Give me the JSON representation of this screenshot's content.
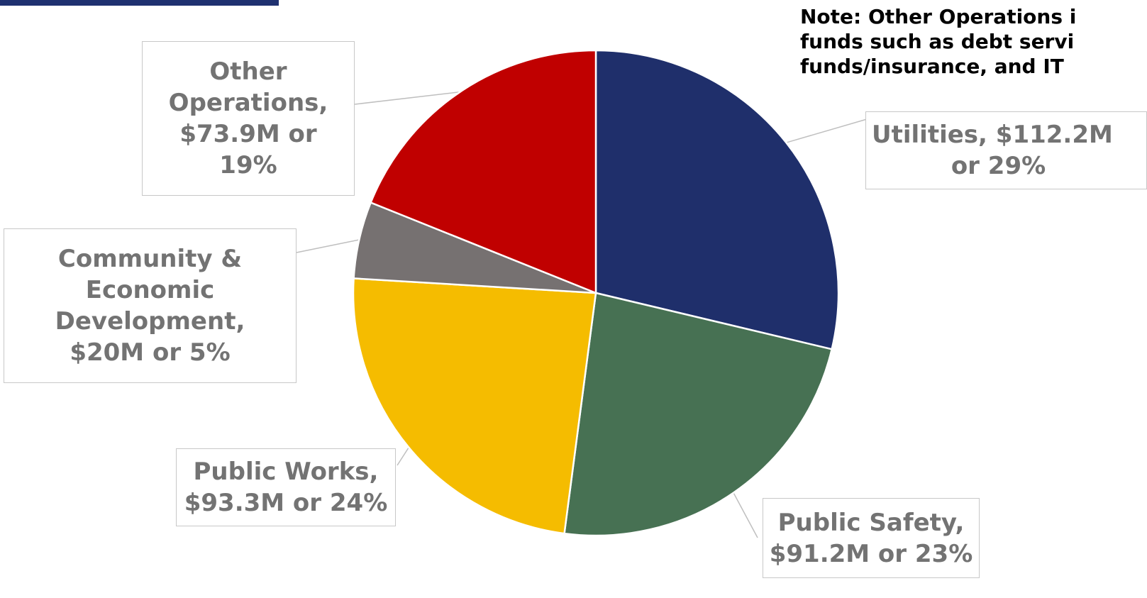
{
  "note": {
    "lines": [
      "Note: Other Operations i",
      "funds such as debt servi",
      "funds/insurance, and IT"
    ]
  },
  "colors": {
    "header_bar": "#1F3170",
    "utilities": "#1F2F6B",
    "public_safety": "#477153",
    "public_works": "#F5BC00",
    "community": "#767171",
    "other_operations": "#C00000"
  },
  "chart_data": {
    "type": "pie",
    "title": "",
    "slices": [
      {
        "label": "Utilities",
        "value": 112.2,
        "percent": 29,
        "color": "#1F2F6B",
        "label_lines": [
          "Utilities, $112.2M",
          "or 29%"
        ]
      },
      {
        "label": "Public Safety",
        "value": 91.2,
        "percent": 23,
        "color": "#477153",
        "label_lines": [
          "Public Safety,",
          "$91.2M or 23%"
        ]
      },
      {
        "label": "Public Works",
        "value": 93.3,
        "percent": 24,
        "color": "#F5BC00",
        "label_lines": [
          "Public Works,",
          "$93.3M or 24%"
        ]
      },
      {
        "label": "Community & Economic Development",
        "value": 20,
        "percent": 5,
        "color": "#767171",
        "label_lines": [
          "Community &",
          "Economic",
          "Development,",
          "$20M or 5%"
        ]
      },
      {
        "label": "Other Operations",
        "value": 73.9,
        "percent": 19,
        "color": "#C00000",
        "label_lines": [
          "Other",
          "Operations,",
          "$73.9M or",
          "19%"
        ]
      }
    ]
  }
}
